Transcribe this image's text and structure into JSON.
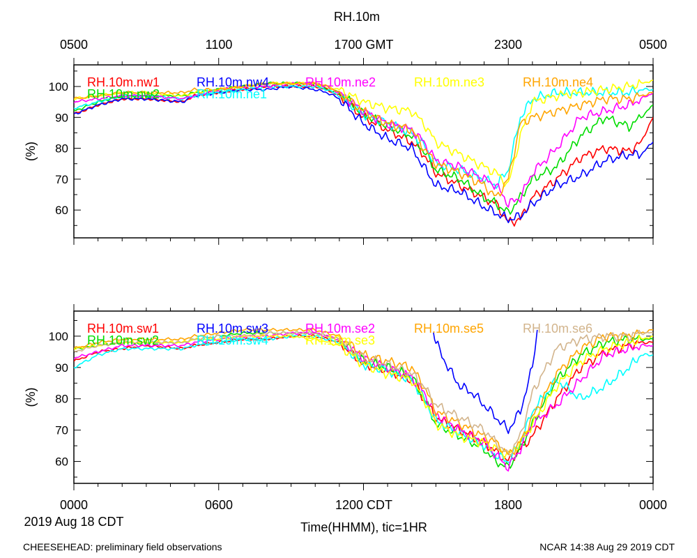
{
  "title": "RH.10m",
  "top_axis": {
    "ticks": [
      "0500",
      "1100",
      "1700 GMT",
      "2300",
      "0500"
    ]
  },
  "bottom_axis": {
    "ticks": [
      "0000",
      "0600",
      "1200 CDT",
      "1800",
      "0000"
    ],
    "date_label": "2019 Aug 18 CDT",
    "xlabel": "Time(HHMM), tic=1HR"
  },
  "footer": {
    "left": "CHEESEHEAD: preliminary field observations",
    "right": "NCAR 14:38 Aug 29 2019 CDT"
  },
  "chart_data": [
    {
      "type": "line",
      "panel": "upper",
      "ylabel": "(%)",
      "yticks": [
        60,
        70,
        80,
        90,
        100
      ],
      "ylim": [
        51,
        107
      ],
      "xlim": [
        0,
        24
      ],
      "x_unit": "hours since 0000 CDT",
      "grid": false,
      "legend_placement": "top, inside, two staggered rows",
      "series": [
        {
          "name": "RH.10m.nw1",
          "color": "#ff0000",
          "x": [
            0,
            1,
            2,
            3,
            4.5,
            5,
            6,
            7,
            8,
            9,
            10,
            10.5,
            11,
            12,
            13,
            14,
            14.5,
            15,
            16,
            17,
            17.5,
            18,
            18.5,
            19,
            20,
            21,
            22,
            23,
            23.5,
            24
          ],
          "y": [
            91,
            94,
            96,
            96,
            95,
            97,
            98,
            99,
            100,
            100,
            100,
            99,
            97,
            90,
            86,
            82,
            78,
            72,
            68,
            64,
            62,
            56,
            57,
            64,
            70,
            77,
            80,
            79,
            82,
            90
          ]
        },
        {
          "name": "RH.10m.nw2",
          "color": "#00dd00",
          "x": [
            0,
            1,
            2,
            3,
            4.5,
            5,
            6,
            7,
            8,
            9,
            10,
            10.5,
            11,
            12,
            13,
            14,
            14.5,
            15,
            16,
            17,
            17.5,
            18,
            18.5,
            19,
            20,
            21,
            22,
            23,
            23.5,
            24
          ],
          "y": [
            92,
            95,
            97,
            97,
            97,
            98,
            99,
            100,
            101,
            101,
            101,
            99,
            98,
            91,
            87,
            84,
            79,
            73,
            70,
            64,
            62,
            59,
            64,
            70,
            74,
            84,
            90,
            87,
            90,
            94
          ]
        },
        {
          "name": "RH.10m.nw4",
          "color": "#0000ff",
          "x": [
            0,
            1,
            2,
            3,
            4.5,
            5,
            6,
            7,
            8,
            9,
            10,
            10.5,
            11,
            12,
            13,
            14,
            14.5,
            15,
            16,
            17,
            17.5,
            18,
            18.5,
            19,
            20,
            21,
            22,
            23,
            23.5,
            24
          ],
          "y": [
            91,
            94,
            96,
            96,
            95,
            97,
            98,
            99,
            99,
            100,
            99,
            98,
            96,
            88,
            83,
            80,
            74,
            68,
            66,
            61,
            59,
            57,
            58,
            62,
            68,
            71,
            76,
            78,
            78,
            82
          ]
        },
        {
          "name": "RH.10m.ne1",
          "color": "#00ffff",
          "x": [
            0,
            1,
            2,
            3,
            4.5,
            5,
            6,
            7,
            8,
            9,
            10,
            10.5,
            11,
            12,
            13,
            14,
            14.5,
            15,
            16,
            17,
            17.5,
            18,
            18.5,
            19,
            20,
            21,
            22,
            23,
            23.5,
            24
          ],
          "y": [
            93,
            95,
            97,
            97,
            96,
            97,
            98,
            99,
            100,
            100,
            100,
            99,
            97,
            91,
            88,
            85,
            81,
            75,
            73,
            70,
            68,
            73,
            90,
            96,
            98,
            98,
            98,
            98,
            99,
            99
          ]
        },
        {
          "name": "RH.10m.ne2",
          "color": "#ff00ff",
          "x": [
            0,
            1,
            2,
            3,
            4.5,
            5,
            6,
            7,
            8,
            9,
            10,
            10.5,
            11,
            12,
            13,
            14,
            14.5,
            15,
            16,
            17,
            17.5,
            18,
            18.5,
            19,
            20,
            21,
            22,
            23,
            23.5,
            24
          ],
          "y": [
            95,
            96,
            97,
            97,
            96,
            97,
            99,
            100,
            100,
            101,
            101,
            100,
            98,
            92,
            88,
            86,
            82,
            76,
            74,
            70,
            68,
            62,
            64,
            72,
            80,
            90,
            92,
            94,
            96,
            98
          ]
        },
        {
          "name": "RH.10m.ne3",
          "color": "#ffff00",
          "x": [
            0,
            1,
            2,
            3,
            4.5,
            5,
            6,
            7,
            8,
            9,
            10,
            10.5,
            11,
            12,
            13,
            14,
            14.5,
            15,
            16,
            17,
            17.5,
            18,
            18.5,
            19,
            20,
            21,
            22,
            23,
            23.5,
            24
          ],
          "y": [
            96,
            97,
            98,
            98,
            97,
            98,
            99,
            100,
            101,
            101,
            101,
            100,
            99,
            95,
            93,
            92,
            88,
            82,
            78,
            74,
            72,
            68,
            84,
            95,
            97,
            98,
            99,
            100,
            101,
            102
          ]
        },
        {
          "name": "RH.10m.ne4",
          "color": "#ffa500",
          "x": [
            0,
            1,
            2,
            3,
            4.5,
            5,
            6,
            7,
            8,
            9,
            10,
            10.5,
            11,
            12,
            13,
            14,
            14.5,
            15,
            16,
            17,
            17.5,
            18,
            18.5,
            19,
            20,
            21,
            22,
            23,
            23.5,
            24
          ],
          "y": [
            96,
            97,
            98,
            98,
            98,
            99,
            99,
            100,
            101,
            101,
            101,
            100,
            98,
            92,
            88,
            86,
            80,
            75,
            72,
            68,
            64,
            70,
            88,
            90,
            92,
            94,
            96,
            96,
            97,
            98
          ]
        }
      ]
    },
    {
      "type": "line",
      "panel": "lower",
      "ylabel": "(%)",
      "yticks": [
        60,
        70,
        80,
        90,
        100
      ],
      "ylim": [
        53,
        108
      ],
      "xlim": [
        0,
        24
      ],
      "x_unit": "hours since 0000 CDT",
      "grid": false,
      "legend_placement": "top, inside, two staggered rows",
      "series": [
        {
          "name": "RH.10m.sw1",
          "color": "#ff0000",
          "x": [
            0,
            1,
            2,
            3,
            4.5,
            5,
            6,
            7,
            8,
            9,
            10,
            11,
            12,
            13,
            14,
            14.5,
            15,
            16,
            17,
            17.5,
            18,
            18.5,
            19,
            20,
            21,
            22,
            23,
            23.5,
            24
          ],
          "y": [
            92,
            95,
            96,
            97,
            96,
            97,
            98,
            99,
            99,
            100,
            100,
            98,
            91,
            89,
            86,
            80,
            74,
            70,
            66,
            63,
            60,
            64,
            68,
            80,
            90,
            95,
            97,
            98,
            98
          ]
        },
        {
          "name": "RH.10m.sw2",
          "color": "#00dd00",
          "x": [
            0,
            1,
            2,
            3,
            4.5,
            5,
            6,
            7,
            8,
            9,
            10,
            11,
            12,
            13,
            14,
            14.5,
            15,
            16,
            17,
            17.5,
            18,
            18.5,
            19,
            20,
            21,
            22,
            23,
            23.5,
            24
          ],
          "y": [
            96,
            97,
            98,
            98,
            98,
            99,
            100,
            101,
            101,
            101,
            101,
            99,
            92,
            90,
            87,
            80,
            72,
            68,
            64,
            60,
            58,
            64,
            72,
            86,
            94,
            98,
            99,
            99,
            99
          ]
        },
        {
          "name": "RH.10m.sw3",
          "color": "#0000ff",
          "x": [
            14.9,
            15,
            15.5,
            16,
            16.5,
            17,
            17.5,
            18,
            18.5,
            19,
            19.2
          ],
          "y": [
            102,
            98,
            90,
            84,
            82,
            78,
            74,
            70,
            76,
            90,
            102
          ]
        },
        {
          "name": "RH.10m.sw4",
          "color": "#00ffff",
          "x": [
            0,
            1,
            2,
            3,
            4.5,
            5,
            6,
            7,
            8,
            9,
            10,
            11,
            12,
            13,
            14,
            14.5,
            15,
            16,
            17,
            17.5,
            18,
            18.5,
            19,
            20,
            21,
            22,
            23,
            23.5,
            24
          ],
          "y": [
            90,
            94,
            96,
            96,
            96,
            97,
            98,
            99,
            99,
            100,
            100,
            98,
            91,
            89,
            86,
            80,
            73,
            69,
            65,
            62,
            60,
            66,
            76,
            86,
            80,
            84,
            90,
            94,
            94
          ]
        },
        {
          "name": "RH.10m.se2",
          "color": "#ff00ff",
          "x": [
            0,
            1,
            2,
            3,
            4.5,
            5,
            6,
            7,
            8,
            9,
            10,
            11,
            12,
            13,
            14,
            14.5,
            15,
            16,
            17,
            17.5,
            18,
            18.5,
            19,
            20,
            21,
            22,
            23,
            23.5,
            24
          ],
          "y": [
            93,
            95,
            97,
            97,
            97,
            98,
            99,
            100,
            100,
            101,
            101,
            99,
            93,
            90,
            87,
            82,
            75,
            70,
            66,
            62,
            58,
            64,
            72,
            78,
            86,
            94,
            96,
            97,
            97
          ]
        },
        {
          "name": "RH.10m.se3",
          "color": "#ffff00",
          "x": [
            0,
            1,
            2,
            3,
            4.5,
            5,
            6,
            7,
            8,
            9,
            10,
            11,
            12,
            13,
            14,
            14.5,
            15,
            16,
            17,
            17.5,
            18,
            18.5,
            19,
            20,
            21,
            22,
            23,
            23.5,
            24
          ],
          "y": [
            96,
            97,
            98,
            98,
            98,
            99,
            99,
            100,
            100,
            100,
            99,
            97,
            91,
            88,
            86,
            80,
            72,
            68,
            66,
            64,
            62,
            66,
            72,
            84,
            92,
            96,
            98,
            99,
            100
          ]
        },
        {
          "name": "RH.10m.se5",
          "color": "#ffa500",
          "x": [
            0,
            1,
            2,
            3,
            4.5,
            5,
            6,
            7,
            8,
            9,
            10,
            11,
            12,
            13,
            14,
            14.5,
            15,
            16,
            17,
            17.5,
            18,
            18.5,
            19,
            20,
            21,
            22,
            23,
            23.5,
            24
          ],
          "y": [
            96,
            98,
            99,
            99,
            99,
            100,
            101,
            102,
            102,
            102,
            102,
            100,
            94,
            92,
            90,
            84,
            76,
            72,
            68,
            66,
            62,
            66,
            74,
            88,
            96,
            100,
            100,
            101,
            102
          ]
        },
        {
          "name": "RH.10m.se6",
          "color": "#d2b48c",
          "x": [
            0,
            1,
            2,
            3,
            4.5,
            5,
            6,
            7,
            8,
            9,
            10,
            11,
            12,
            13,
            14,
            14.5,
            15,
            16,
            17,
            17.5,
            18,
            18.5,
            19,
            20,
            21,
            22,
            23,
            23.5,
            24
          ],
          "y": [
            95,
            97,
            98,
            98,
            98,
            99,
            100,
            100,
            101,
            101,
            101,
            99,
            93,
            91,
            88,
            84,
            78,
            74,
            70,
            66,
            62,
            68,
            82,
            96,
            99,
            100,
            100,
            101,
            101
          ]
        }
      ]
    }
  ]
}
